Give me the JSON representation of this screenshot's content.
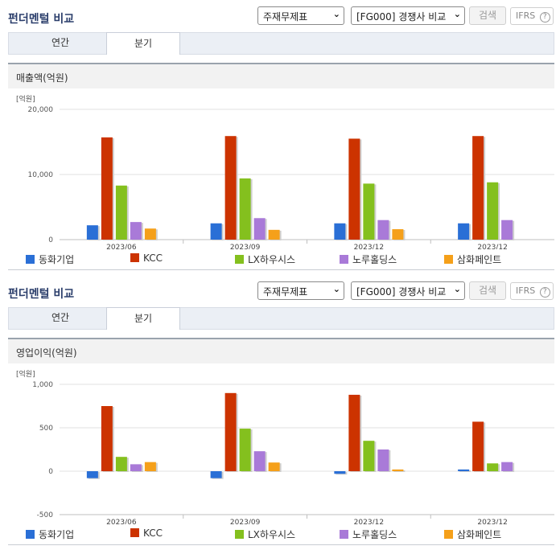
{
  "panels": [
    {
      "title": "펀더멘털 비교",
      "select_statement": "주재무제표",
      "select_compare": "[FG000] 경쟁사 비교",
      "search_label": "검색",
      "ifrs_label": "IFRS",
      "tabs": [
        "연간",
        "분기"
      ],
      "active_tab": "분기",
      "chart_header": "매출액(억원)"
    },
    {
      "title": "펀더멘털 비교",
      "select_statement": "주재무제표",
      "select_compare": "[FG000] 경쟁사 비교",
      "search_label": "검색",
      "ifrs_label": "IFRS",
      "tabs": [
        "연간",
        "분기"
      ],
      "active_tab": "분기",
      "chart_header": "영업이익(억원)"
    }
  ],
  "colors": {
    "title": "#2b3e6b",
    "series": [
      "#2a6fd6",
      "#cc3300",
      "#84c01e",
      "#a97ad8",
      "#f5a01a"
    ]
  },
  "icons": {
    "dropdown": "chevron-down-icon",
    "help": "question-circle-icon"
  },
  "chart_data": [
    {
      "type": "bar",
      "unit_label": "[억원]",
      "categories": [
        "2023/06",
        "2023/09",
        "2023/12",
        "2023/12"
      ],
      "ylim": [
        0,
        20000
      ],
      "yticks": [
        0,
        10000,
        20000
      ],
      "ytick_labels": [
        "0",
        "10,000",
        "20,000"
      ],
      "grid": true,
      "legend_position": "bottom",
      "series": [
        {
          "name": "동화기업",
          "values": [
            2200,
            2500,
            2500,
            2500
          ]
        },
        {
          "name": "KCC",
          "values": [
            15700,
            15900,
            15500,
            15900
          ]
        },
        {
          "name": "LX하우시스",
          "values": [
            8300,
            9400,
            8600,
            8800
          ]
        },
        {
          "name": "노루홀딩스",
          "values": [
            2700,
            3300,
            3000,
            3000
          ]
        },
        {
          "name": "삼화페인트",
          "values": [
            1700,
            1500,
            1600,
            null
          ]
        }
      ]
    },
    {
      "type": "bar",
      "unit_label": "[억원]",
      "categories": [
        "2023/06",
        "2023/09",
        "2023/12",
        "2023/12"
      ],
      "ylim": [
        -500,
        1000
      ],
      "yticks": [
        -500,
        0,
        500,
        1000
      ],
      "ytick_labels": [
        "-500",
        "0",
        "500",
        "1,000"
      ],
      "grid": true,
      "legend_position": "bottom",
      "series": [
        {
          "name": "동화기업",
          "values": [
            -80,
            -80,
            -30,
            20
          ]
        },
        {
          "name": "KCC",
          "values": [
            750,
            900,
            880,
            570
          ]
        },
        {
          "name": "LX하우시스",
          "values": [
            165,
            490,
            350,
            90
          ]
        },
        {
          "name": "노루홀딩스",
          "values": [
            80,
            230,
            250,
            105
          ]
        },
        {
          "name": "삼화페인트",
          "values": [
            105,
            100,
            20,
            null
          ]
        }
      ]
    }
  ]
}
